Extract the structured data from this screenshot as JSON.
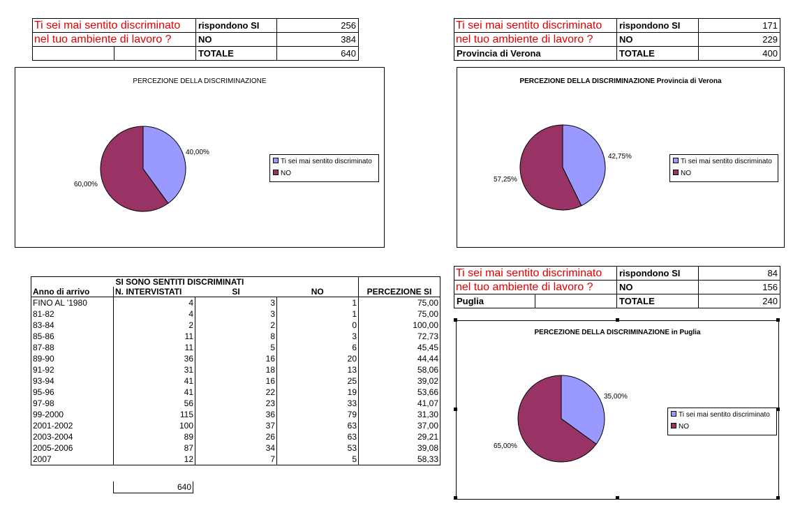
{
  "colors": {
    "si": "#9999ff",
    "no": "#993366",
    "question": "#e00000"
  },
  "table_all": {
    "q1": "Ti sei mai sentito discriminato",
    "q2": "nel tuo ambiente di lavoro ?",
    "r1_label": "rispondono SI",
    "r1_val": "256",
    "r2_label": "NO",
    "r2_val": "384",
    "r3_label": "TOTALE",
    "r3_val": "640"
  },
  "table_verona": {
    "q1": "Ti sei mai sentito discriminato",
    "q2": "nel tuo ambiente di lavoro ?",
    "region": "Provincia di Verona",
    "r1_label": "rispondono SI",
    "r1_val": "171",
    "r2_label": "NO",
    "r2_val": "229",
    "r3_label": "TOTALE",
    "r3_val": "400"
  },
  "table_puglia": {
    "q1": "Ti sei mai sentito discriminato",
    "q2": "nel tuo ambiente di lavoro ?",
    "region": "Puglia",
    "r1_label": "rispondono SI",
    "r1_val": "84",
    "r2_label": "NO",
    "r2_val": "156",
    "r3_label": "TOTALE",
    "r3_val": "240"
  },
  "chart_data": [
    {
      "type": "pie",
      "title": "PERCEZIONE DELLA DISCRIMINAZIONE",
      "categories": [
        "Ti sei mai sentito discriminato",
        "NO"
      ],
      "values": [
        40.0,
        60.0
      ],
      "labels": [
        "40,00%",
        "60,00%"
      ],
      "legend": "right"
    },
    {
      "type": "pie",
      "title": "PERCEZIONE DELLA DISCRIMINAZIONE Provincia di Verona",
      "categories": [
        "Ti sei mai sentito discriminato",
        "NO"
      ],
      "values": [
        42.75,
        57.25
      ],
      "labels": [
        "42,75%",
        "57,25%"
      ],
      "legend": "right"
    },
    {
      "type": "pie",
      "title": "PERCEZIONE DELLA DISCRIMINAZIONE in Puglia",
      "categories": [
        "Ti sei mai sentito discriminato",
        "NO"
      ],
      "values": [
        35.0,
        65.0
      ],
      "labels": [
        "35,00%",
        "65,00%"
      ],
      "legend": "right"
    },
    {
      "type": "table",
      "title": "SI SONO SENTITI DISCRIMINATI",
      "columns": [
        "Anno di arrivo",
        "N. INTERVISTATI",
        "SI",
        "NO",
        "PERCEZIONE SI"
      ],
      "rows": [
        [
          "FINO AL '1980",
          "4",
          "3",
          "1",
          "75,00"
        ],
        [
          "81-82",
          "4",
          "3",
          "1",
          "75,00"
        ],
        [
          "83-84",
          "2",
          "2",
          "0",
          "100,00"
        ],
        [
          "85-86",
          "11",
          "8",
          "3",
          "72,73"
        ],
        [
          "87-88",
          "11",
          "5",
          "6",
          "45,45"
        ],
        [
          "89-90",
          "36",
          "16",
          "20",
          "44,44"
        ],
        [
          "91-92",
          "31",
          "18",
          "13",
          "58,06"
        ],
        [
          "93-94",
          "41",
          "16",
          "25",
          "39,02"
        ],
        [
          "95-96",
          "41",
          "22",
          "19",
          "53,66"
        ],
        [
          "97-98",
          "56",
          "23",
          "33",
          "41,07"
        ],
        [
          "99-2000",
          "115",
          "36",
          "79",
          "31,30"
        ],
        [
          "2001-2002",
          "100",
          "37",
          "63",
          "37,00"
        ],
        [
          "2003-2004",
          "89",
          "26",
          "63",
          "29,21"
        ],
        [
          "2005-2006",
          "87",
          "34",
          "53",
          "39,08"
        ],
        [
          "2007",
          "12",
          "7",
          "5",
          "58,33"
        ]
      ],
      "total": "640"
    }
  ]
}
